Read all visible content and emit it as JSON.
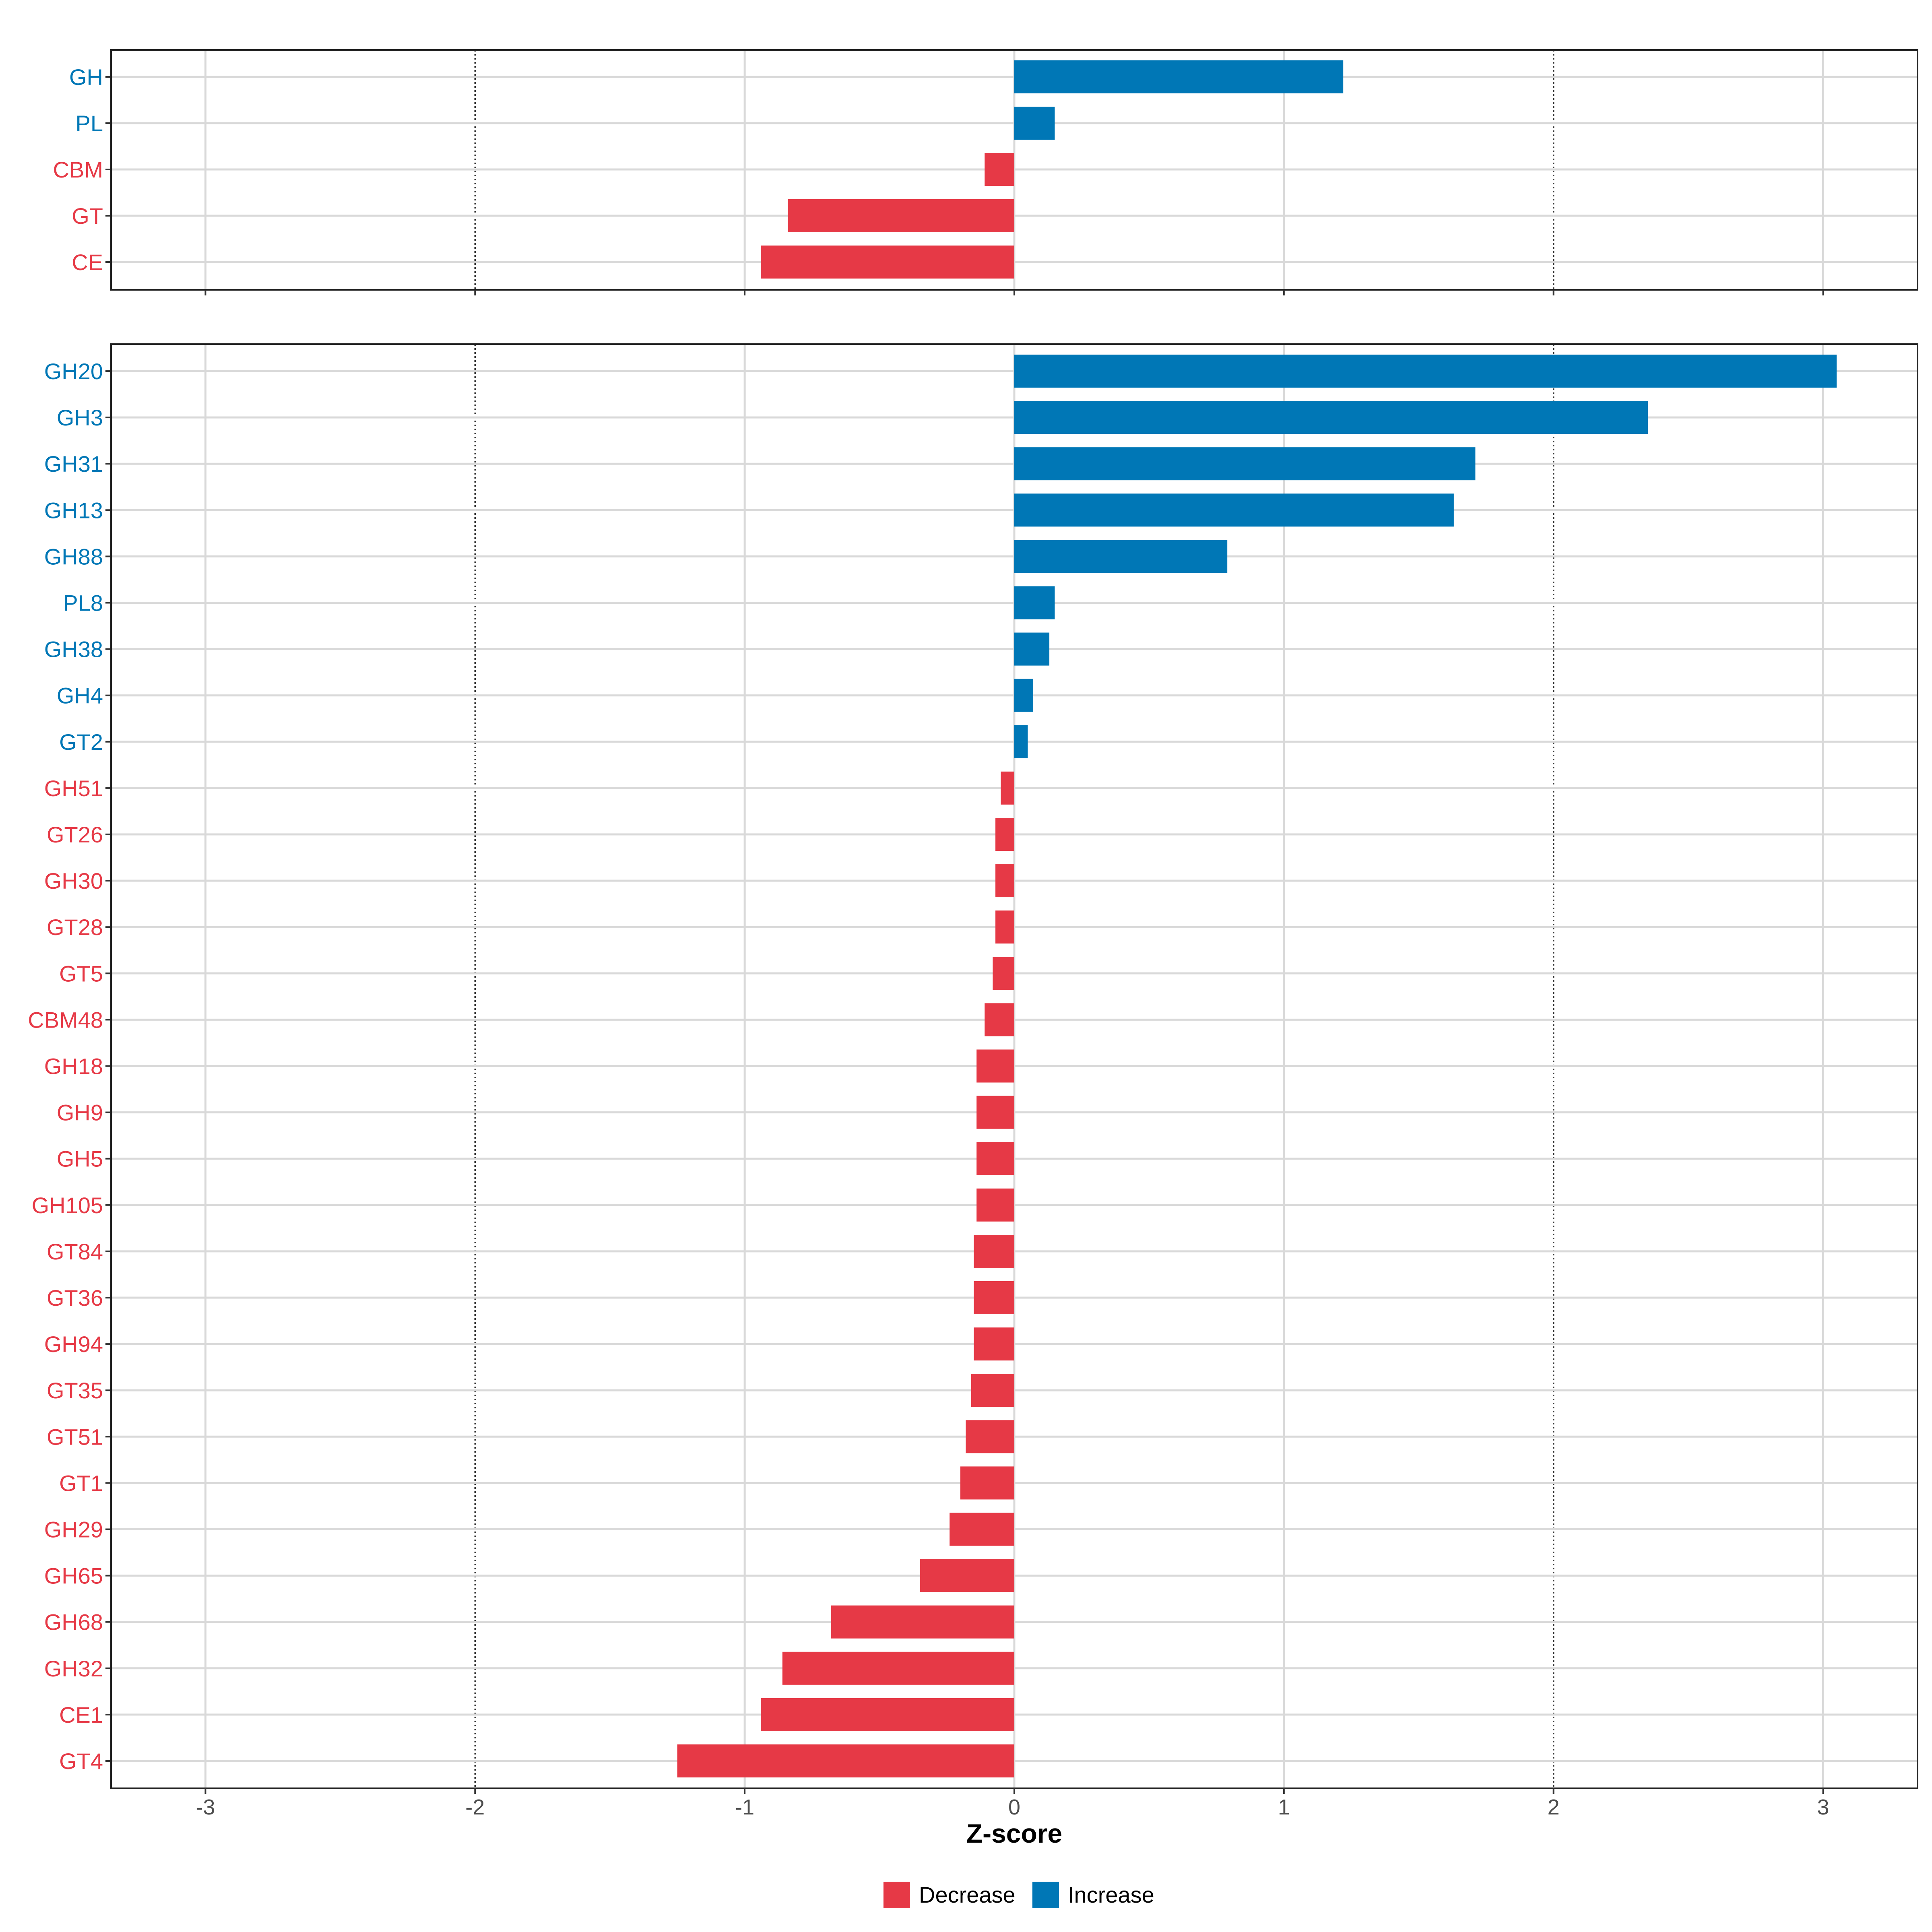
{
  "chart_data": {
    "type": "bar",
    "orientation": "horizontal",
    "xlabel": "Z-score",
    "xlim": [
      -3.35,
      3.35
    ],
    "xticks": [
      -3,
      -2,
      -1,
      0,
      1,
      2,
      3
    ],
    "tick_labels": [
      "-3",
      "-2",
      "-1",
      "0",
      "1",
      "2",
      "3"
    ],
    "reference_lines": [
      -2,
      2
    ],
    "grid": true,
    "colors": {
      "Decrease": "#e63946",
      "Increase": "#0077b6"
    },
    "legend": {
      "placement": "bottom",
      "items": [
        {
          "name": "Decrease",
          "color": "#e63946"
        },
        {
          "name": "Increase",
          "color": "#0077b6"
        }
      ]
    },
    "panels": [
      {
        "name": "classes",
        "categories": [
          "GH",
          "PL",
          "CBM",
          "GT",
          "CE"
        ],
        "values": [
          1.22,
          0.15,
          -0.11,
          -0.84,
          -0.94
        ]
      },
      {
        "name": "families",
        "categories": [
          "GH20",
          "GH3",
          "GH31",
          "GH13",
          "GH88",
          "PL8",
          "GH38",
          "GH4",
          "GT2",
          "GH51",
          "GT26",
          "GH30",
          "GT28",
          "GT5",
          "CBM48",
          "GH18",
          "GH9",
          "GH5",
          "GH105",
          "GT84",
          "GT36",
          "GH94",
          "GT35",
          "GT51",
          "GT1",
          "GH29",
          "GH65",
          "GH68",
          "GH32",
          "CE1",
          "GT4"
        ],
        "values": [
          3.05,
          2.35,
          1.71,
          1.63,
          0.79,
          0.15,
          0.13,
          0.07,
          0.05,
          -0.05,
          -0.07,
          -0.07,
          -0.07,
          -0.08,
          -0.11,
          -0.14,
          -0.14,
          -0.14,
          -0.14,
          -0.15,
          -0.15,
          -0.15,
          -0.16,
          -0.18,
          -0.2,
          -0.24,
          -0.35,
          -0.68,
          -0.86,
          -0.94,
          -1.25
        ]
      }
    ]
  }
}
